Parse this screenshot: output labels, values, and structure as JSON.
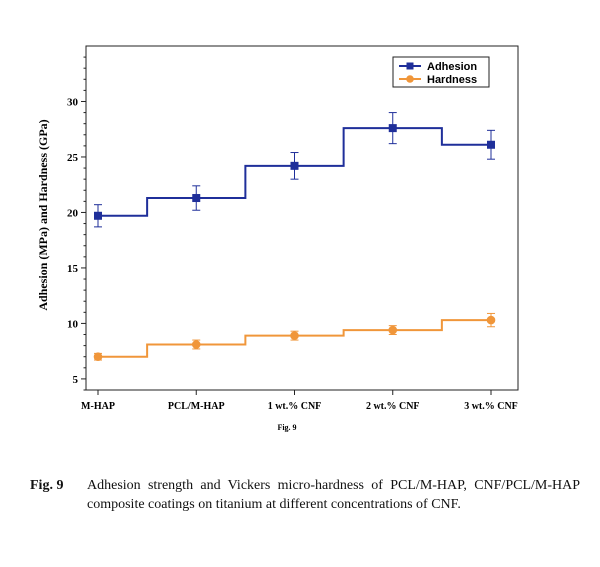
{
  "chart_data": {
    "type": "line",
    "subtype": "step",
    "categories": [
      "M-HAP",
      "PCL/M-HAP",
      "1 wt.% CNF",
      "2 wt.% CNF",
      "3 wt.% CNF"
    ],
    "series": [
      {
        "name": "Adhesion",
        "values": [
          19.7,
          21.3,
          24.2,
          27.6,
          26.1
        ],
        "errors": [
          1.0,
          1.1,
          1.2,
          1.4,
          1.3
        ],
        "color": "#1f2f9a",
        "marker": "square"
      },
      {
        "name": "Hardness",
        "values": [
          7.0,
          8.1,
          8.9,
          9.4,
          10.3
        ],
        "errors": [
          0.3,
          0.4,
          0.4,
          0.4,
          0.6
        ],
        "color": "#f0963a",
        "marker": "circle"
      }
    ],
    "ylabel": "Adhesion (MPa) and Hardness (GPa)",
    "ylim": [
      4,
      35
    ],
    "yticks": [
      5,
      10,
      15,
      20,
      25,
      30
    ],
    "legend_position": "top-right",
    "grid": false,
    "figure_label": "Fig. 9"
  },
  "caption": {
    "label": "Fig. 9",
    "text": "Adhesion strength and Vickers micro-hardness of PCL/M-HAP, CNF/PCL/M-HAP composite coatings on titanium at different concentrations of CNF."
  }
}
